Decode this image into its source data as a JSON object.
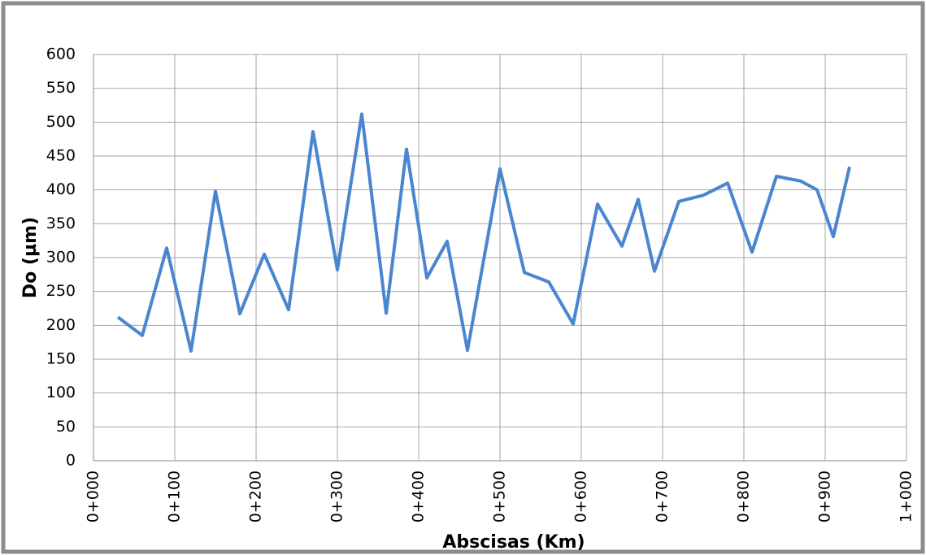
{
  "chart_data": {
    "type": "line",
    "x_label": "Abscisas (Km)",
    "y_label": "Do (µm)",
    "x": [
      30,
      60,
      90,
      120,
      150,
      180,
      210,
      240,
      270,
      300,
      330,
      360,
      385,
      410,
      435,
      460,
      500,
      530,
      560,
      590,
      620,
      650,
      670,
      690,
      720,
      750,
      780,
      810,
      840,
      870,
      890,
      910,
      930
    ],
    "series": [
      {
        "color": "#4a86d0",
        "values": [
          212,
          185,
          314,
          162,
          398,
          217,
          305,
          223,
          486,
          282,
          512,
          218,
          460,
          270,
          324,
          163,
          431,
          278,
          264,
          202,
          379,
          317,
          386,
          280,
          383,
          392,
          410,
          308,
          420,
          413,
          400,
          331,
          434
        ]
      }
    ],
    "xlim": [
      0,
      1000
    ],
    "xticks": [
      {
        "value": 0,
        "label": "0+000"
      },
      {
        "value": 100,
        "label": "0+100"
      },
      {
        "value": 200,
        "label": "0+200"
      },
      {
        "value": 300,
        "label": "0+300"
      },
      {
        "value": 400,
        "label": "0+400"
      },
      {
        "value": 500,
        "label": "0+500"
      },
      {
        "value": 600,
        "label": "0+600"
      },
      {
        "value": 700,
        "label": "0+700"
      },
      {
        "value": 800,
        "label": "0+800"
      },
      {
        "value": 900,
        "label": "0+900"
      },
      {
        "value": 1000,
        "label": "1+000"
      }
    ],
    "ylim": [
      0,
      600
    ],
    "yticks": [
      0,
      50,
      100,
      150,
      200,
      250,
      300,
      350,
      400,
      450,
      500,
      550,
      600
    ],
    "grid": true
  }
}
